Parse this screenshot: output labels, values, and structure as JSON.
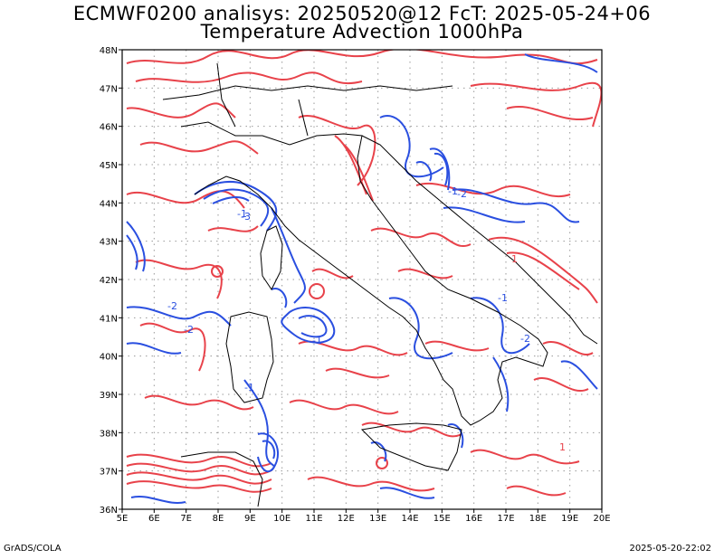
{
  "title_line1": "ECMWF0200 analisys: 20250520@12 FcT: 2025-05-24+06",
  "title_line2": "Temperature Advection 1000hPa",
  "footer_left": "GrADS/COLA",
  "footer_right": "2025-05-20-22:02",
  "lon_labels": [
    "5E",
    "6E",
    "7E",
    "8E",
    "9E",
    "10E",
    "11E",
    "12E",
    "13E",
    "14E",
    "15E",
    "16E",
    "17E",
    "18E",
    "19E",
    "20E"
  ],
  "lat_labels": [
    "48N",
    "47N",
    "46N",
    "45N",
    "44N",
    "43N",
    "42N",
    "41N",
    "40N",
    "39N",
    "38N",
    "37N",
    "36N"
  ],
  "lon_range": [
    5,
    20
  ],
  "lat_range": [
    36,
    48
  ],
  "grid": "dotted",
  "colors": {
    "warm": "#e8424a",
    "cold": "#2a4fe0",
    "border": "#000000",
    "grid": "#999999"
  },
  "contour_labels": [
    "-1",
    "-2",
    "-3",
    "-1",
    "-2",
    "1",
    "-1",
    "-2",
    "-1",
    "1",
    "-2",
    "-1"
  ]
}
